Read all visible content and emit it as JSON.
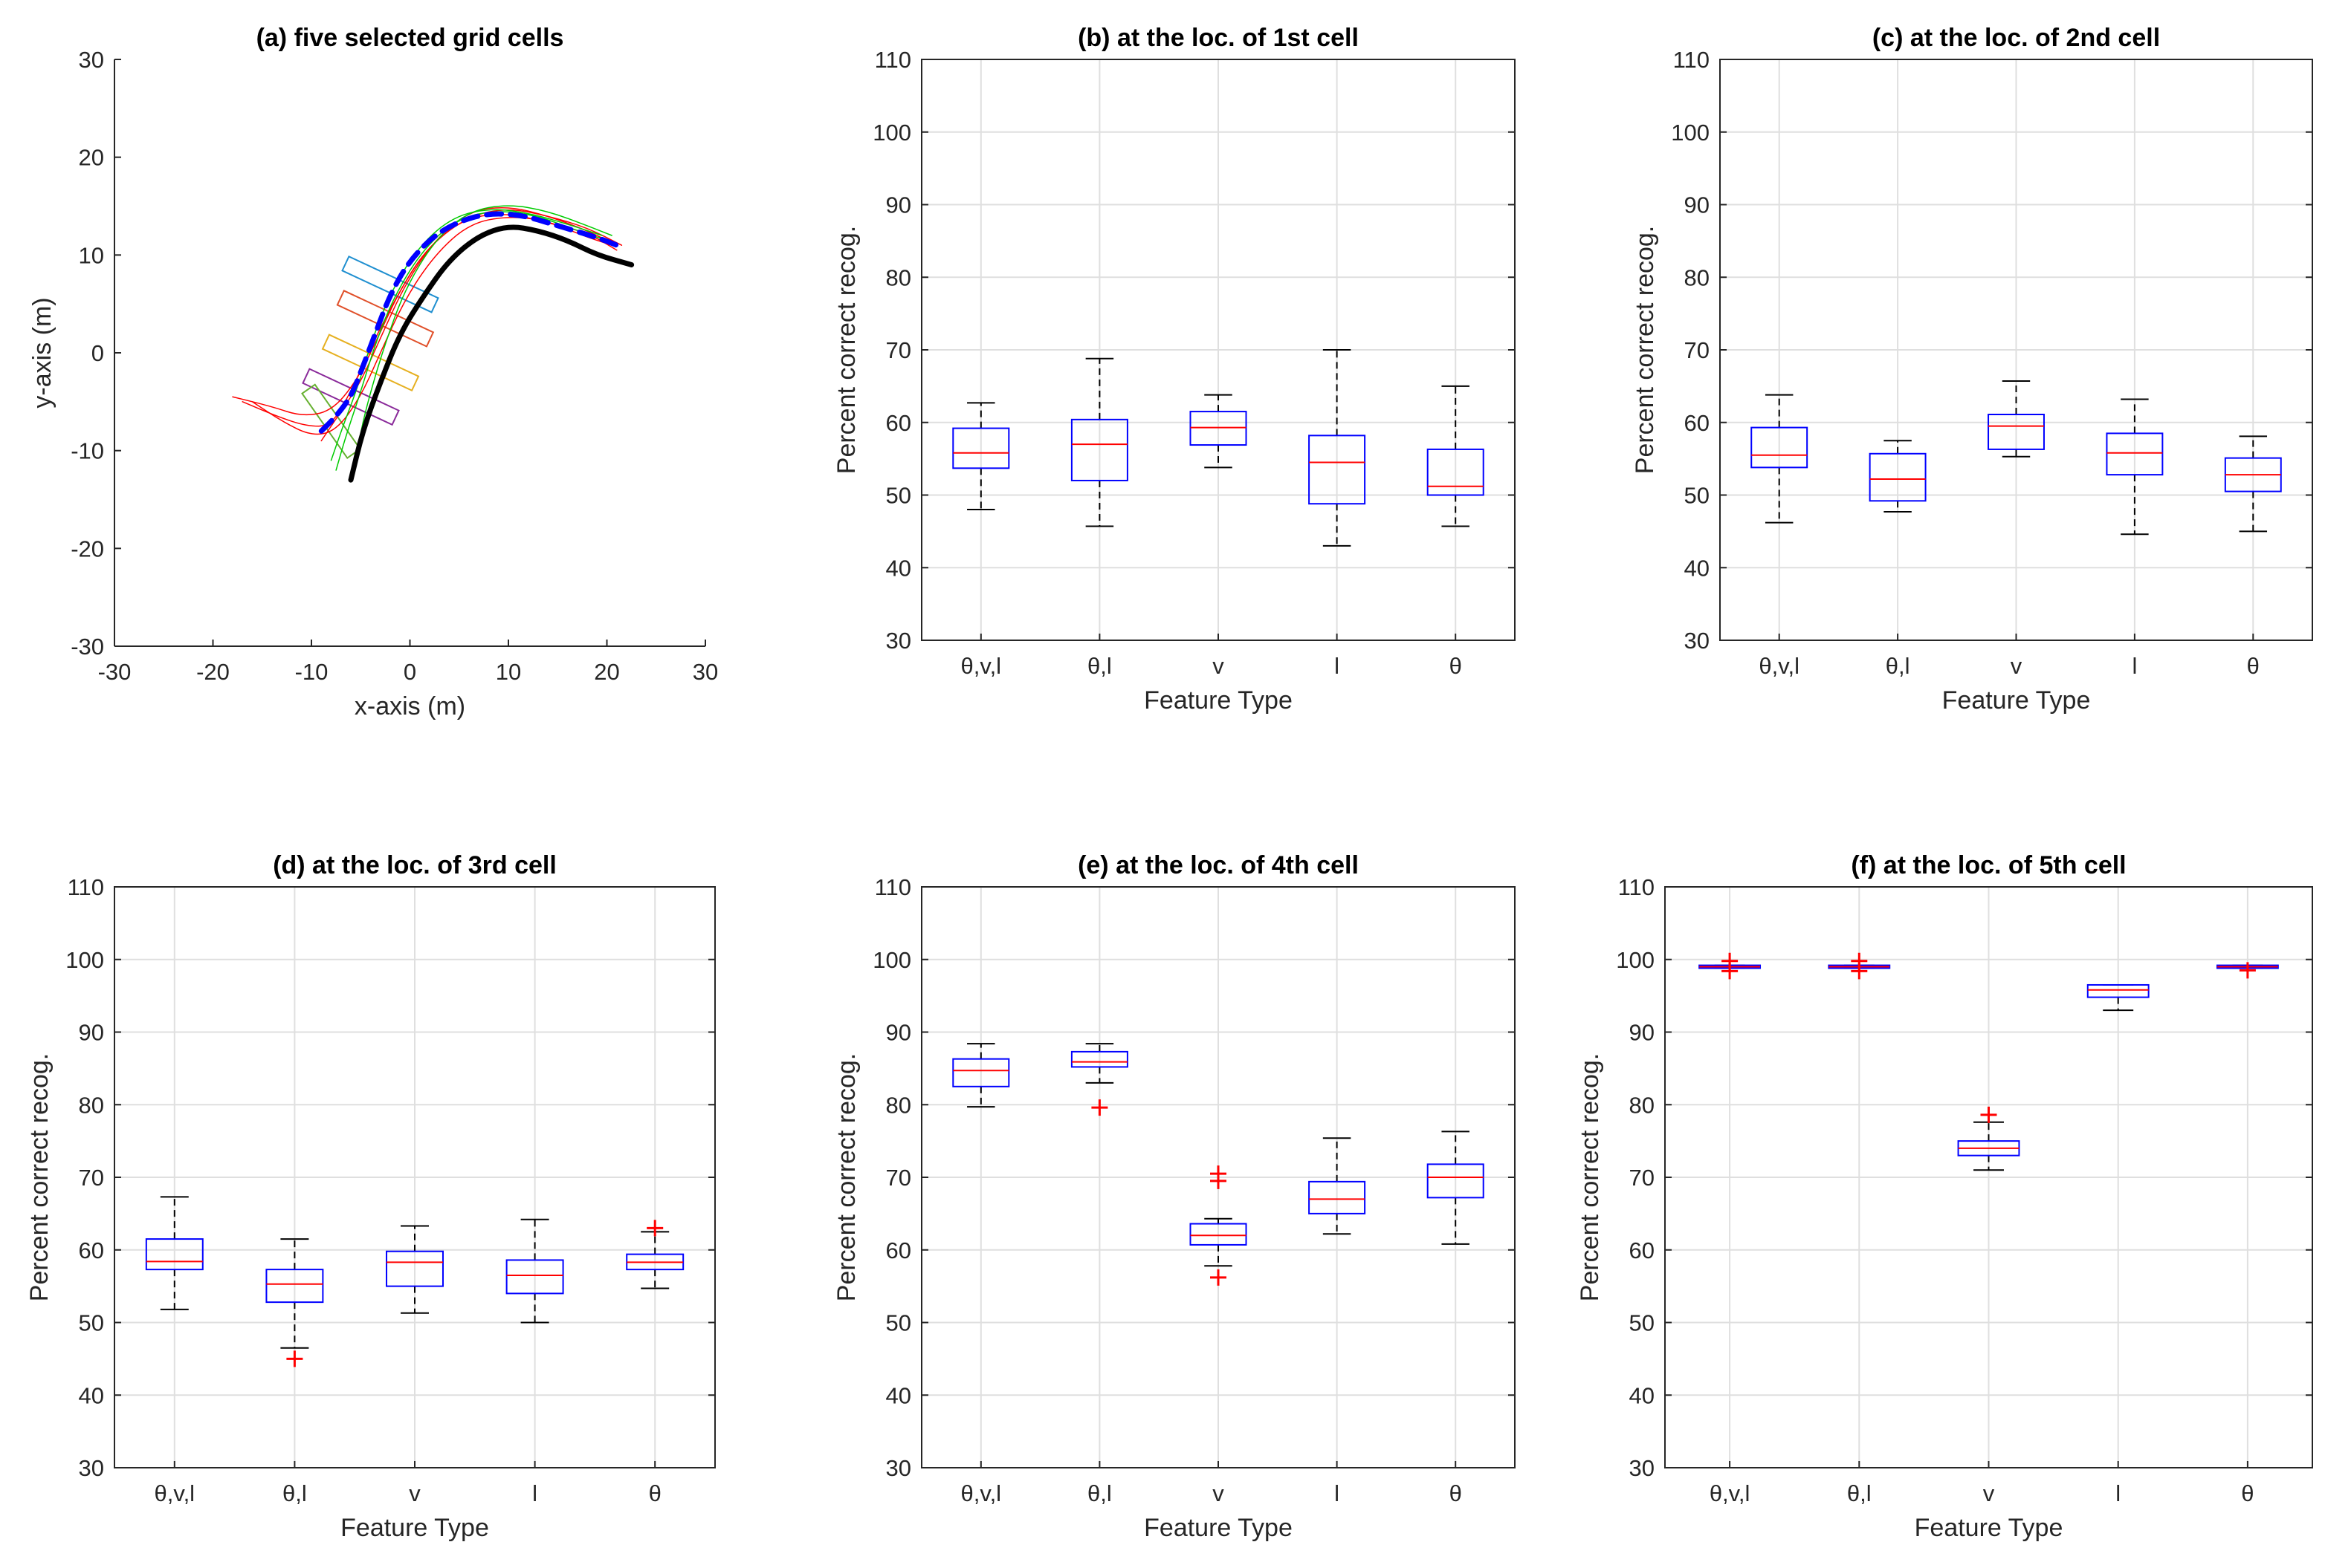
{
  "colors": {
    "box": "#0000ff",
    "median": "#ff0000",
    "outlier": "#ff0000",
    "whisker": "#000000",
    "grid": "#dfdfdf",
    "reference_path": "#000000",
    "mean_path": "#0000ff"
  },
  "chart_data": [
    {
      "id": "a",
      "type": "line",
      "title": "(a) five selected grid cells",
      "xlabel": "x-axis (m)",
      "ylabel": "y-axis (m)",
      "xlim": [
        -30,
        30
      ],
      "ylim": [
        -30,
        30
      ],
      "xticks": [
        "-30",
        "-20",
        "-10",
        "0",
        "10",
        "20",
        "30"
      ],
      "yticks": [
        "-30",
        "-20",
        "-10",
        "0",
        "10",
        "20",
        "30"
      ],
      "grid": false,
      "series": [
        {
          "name": "reference path",
          "color": "#000000",
          "style": "solid-thick",
          "x": [
            -6,
            -4.8,
            -3,
            -1,
            1.5,
            4,
            7,
            10,
            13,
            16,
            19,
            22.5
          ],
          "y": [
            -13,
            -8,
            -3,
            2,
            6,
            9.5,
            12,
            13,
            12.5,
            11.5,
            10,
            9
          ]
        },
        {
          "name": "mean path",
          "color": "#0000ff",
          "style": "dashed-thick",
          "x": [
            -9,
            -7.5,
            -6,
            -5,
            -3.5,
            -2,
            0,
            3,
            7,
            11,
            15,
            19,
            21
          ],
          "y": [
            -8,
            -6.5,
            -4.5,
            -2,
            2,
            6,
            9.5,
            12.5,
            14.2,
            14.2,
            13,
            11.8,
            11
          ]
        },
        {
          "name": "trajectory",
          "color": "#ff0000",
          "style": "thin",
          "x": [
            -18,
            -14,
            -11,
            -8,
            -5.5,
            -3.5,
            -1,
            2,
            6,
            10,
            14,
            18,
            21.5
          ],
          "y": [
            -4.5,
            -5.5,
            -6.5,
            -6,
            -3,
            1,
            6.5,
            11,
            14,
            14.8,
            14,
            12.8,
            11
          ]
        },
        {
          "name": "trajectory",
          "color": "#ff0000",
          "style": "thin",
          "x": [
            -17,
            -13.5,
            -10.5,
            -8,
            -6,
            -4,
            -1.5,
            1.5,
            5.5,
            10,
            14,
            18,
            21
          ],
          "y": [
            -5,
            -6.5,
            -7.5,
            -7.5,
            -4,
            0.5,
            5.5,
            10.5,
            13.8,
            14.3,
            13.3,
            12.3,
            10.5
          ]
        },
        {
          "name": "trajectory",
          "color": "#ff0000",
          "style": "thin",
          "x": [
            -16,
            -13,
            -10,
            -7.5,
            -5,
            -3,
            -0.5,
            2.5,
            6,
            10,
            14,
            17.5,
            20.5
          ],
          "y": [
            -5,
            -7,
            -8.5,
            -8,
            -4.5,
            0,
            5.5,
            10,
            13.2,
            14,
            13.5,
            12,
            11
          ]
        },
        {
          "name": "trajectory",
          "color": "#ff0000",
          "style": "thin",
          "x": [
            -9,
            -7,
            -5,
            -3,
            -0.5,
            2.5,
            6,
            10,
            14,
            18,
            21
          ],
          "y": [
            -9,
            -6,
            -3,
            1.5,
            7,
            11.5,
            14.5,
            15,
            14,
            12.5,
            11
          ]
        },
        {
          "name": "trajectory",
          "color": "#00cc00",
          "style": "thin",
          "x": [
            -7.5,
            -6.5,
            -5,
            -3.5,
            -1.5,
            1.5,
            5,
            9,
            13,
            17,
            20
          ],
          "y": [
            -12,
            -8.5,
            -4,
            1,
            6,
            10.8,
            13.8,
            14.6,
            14,
            12.5,
            11.5
          ]
        },
        {
          "name": "trajectory",
          "color": "#00cc00",
          "style": "thin",
          "x": [
            -5.5,
            -5,
            -4,
            -2.5,
            -0.5,
            2.5,
            6,
            10,
            14,
            18,
            20.5
          ],
          "y": [
            -11.5,
            -8,
            -4,
            1,
            6.5,
            11.5,
            14.5,
            15.2,
            14.5,
            13,
            12
          ]
        },
        {
          "name": "trajectory",
          "color": "#00cc00",
          "style": "thin",
          "x": [
            -8,
            -6.8,
            -5.3,
            -3.8,
            -1.8,
            1,
            4.5,
            8.5,
            12.5,
            16.5,
            19.5
          ],
          "y": [
            -11,
            -7.5,
            -3.5,
            1.5,
            6.5,
            11,
            14,
            14.8,
            14.2,
            13,
            12
          ]
        }
      ],
      "cells": [
        {
          "label": "cell 1",
          "color": "#1f8fd0",
          "cx": -2,
          "cy": 7,
          "width": 10,
          "height": 1.6,
          "angle": -25
        },
        {
          "label": "cell 2",
          "color": "#e0502a",
          "cx": -2.5,
          "cy": 3.5,
          "width": 10,
          "height": 1.6,
          "angle": -25
        },
        {
          "label": "cell 3",
          "color": "#e6b020",
          "cx": -4,
          "cy": -1,
          "width": 10,
          "height": 1.6,
          "angle": -25
        },
        {
          "label": "cell 4",
          "color": "#8a2a9a",
          "cx": -6,
          "cy": -4.5,
          "width": 10,
          "height": 1.6,
          "angle": -25
        },
        {
          "label": "cell 5",
          "color": "#66b030",
          "cx": -8,
          "cy": -7,
          "width": 8,
          "height": 1.6,
          "angle": -55
        }
      ]
    },
    {
      "id": "b",
      "type": "box",
      "title": "(b) at the loc. of 1st cell",
      "xlabel": "Feature Type",
      "ylabel": "Percent correct recog.",
      "ylim": [
        30,
        110
      ],
      "yticks": [
        "30",
        "40",
        "50",
        "60",
        "70",
        "80",
        "90",
        "100",
        "110"
      ],
      "categories": [
        "θ,v,l",
        "θ,l",
        "v",
        "l",
        "θ"
      ],
      "grid": true,
      "boxes": [
        {
          "min": 48,
          "q1": 53.7,
          "median": 55.8,
          "q3": 59.2,
          "max": 62.7,
          "outliers": []
        },
        {
          "min": 45.7,
          "q1": 52,
          "median": 57,
          "q3": 60.4,
          "max": 68.8,
          "outliers": []
        },
        {
          "min": 53.8,
          "q1": 56.9,
          "median": 59.3,
          "q3": 61.5,
          "max": 63.8,
          "outliers": []
        },
        {
          "min": 43,
          "q1": 48.8,
          "median": 54.5,
          "q3": 58.2,
          "max": 70,
          "outliers": []
        },
        {
          "min": 45.7,
          "q1": 50,
          "median": 51.2,
          "q3": 56.3,
          "max": 65,
          "outliers": []
        }
      ]
    },
    {
      "id": "c",
      "type": "box",
      "title": "(c) at the loc. of 2nd cell",
      "xlabel": "Feature Type",
      "ylabel": "Percent correct recog.",
      "ylim": [
        30,
        110
      ],
      "yticks": [
        "30",
        "40",
        "50",
        "60",
        "70",
        "80",
        "90",
        "100",
        "110"
      ],
      "categories": [
        "θ,v,l",
        "θ,l",
        "v",
        "l",
        "θ"
      ],
      "grid": true,
      "boxes": [
        {
          "min": 46.2,
          "q1": 53.8,
          "median": 55.5,
          "q3": 59.3,
          "max": 63.8,
          "outliers": []
        },
        {
          "min": 47.7,
          "q1": 49.2,
          "median": 52.2,
          "q3": 55.7,
          "max": 57.5,
          "outliers": []
        },
        {
          "min": 55.3,
          "q1": 56.3,
          "median": 59.5,
          "q3": 61.1,
          "max": 65.7,
          "outliers": []
        },
        {
          "min": 44.6,
          "q1": 52.8,
          "median": 55.8,
          "q3": 58.5,
          "max": 63.2,
          "outliers": []
        },
        {
          "min": 45,
          "q1": 50.5,
          "median": 52.8,
          "q3": 55.1,
          "max": 58.1,
          "outliers": []
        }
      ]
    },
    {
      "id": "d",
      "type": "box",
      "title": "(d) at the loc. of 3rd cell",
      "xlabel": "Feature Type",
      "ylabel": "Percent correct recog.",
      "ylim": [
        30,
        110
      ],
      "yticks": [
        "30",
        "40",
        "50",
        "60",
        "70",
        "80",
        "90",
        "100",
        "110"
      ],
      "categories": [
        "θ,v,l",
        "θ,l",
        "v",
        "l",
        "θ"
      ],
      "grid": true,
      "boxes": [
        {
          "min": 51.8,
          "q1": 57.3,
          "median": 58.4,
          "q3": 61.5,
          "max": 67.3,
          "outliers": []
        },
        {
          "min": 46.5,
          "q1": 52.8,
          "median": 55.3,
          "q3": 57.3,
          "max": 61.5,
          "outliers": [
            45
          ]
        },
        {
          "min": 51.3,
          "q1": 55,
          "median": 58.3,
          "q3": 59.8,
          "max": 63.3,
          "outliers": []
        },
        {
          "min": 50,
          "q1": 54,
          "median": 56.5,
          "q3": 58.6,
          "max": 64.2,
          "outliers": []
        },
        {
          "min": 54.7,
          "q1": 57.3,
          "median": 58.3,
          "q3": 59.4,
          "max": 62.5,
          "outliers": [
            63
          ]
        }
      ]
    },
    {
      "id": "e",
      "type": "box",
      "title": "(e) at the loc. of 4th cell",
      "xlabel": "Feature Type",
      "ylabel": "Percent correct recog.",
      "ylim": [
        30,
        110
      ],
      "yticks": [
        "30",
        "40",
        "50",
        "60",
        "70",
        "80",
        "90",
        "100",
        "110"
      ],
      "categories": [
        "θ,v,l",
        "θ,l",
        "v",
        "l",
        "θ"
      ],
      "grid": true,
      "boxes": [
        {
          "min": 79.7,
          "q1": 82.5,
          "median": 84.7,
          "q3": 86.3,
          "max": 88.4,
          "outliers": []
        },
        {
          "min": 83,
          "q1": 85.2,
          "median": 85.9,
          "q3": 87.3,
          "max": 88.4,
          "outliers": [
            79.6
          ]
        },
        {
          "min": 57.8,
          "q1": 60.7,
          "median": 62,
          "q3": 63.6,
          "max": 64.3,
          "outliers": [
            56.2,
            69.5,
            70.5
          ]
        },
        {
          "min": 62.2,
          "q1": 65,
          "median": 67,
          "q3": 69.4,
          "max": 75.4,
          "outliers": []
        },
        {
          "min": 60.8,
          "q1": 67.2,
          "median": 70,
          "q3": 71.8,
          "max": 76.3,
          "outliers": []
        }
      ]
    },
    {
      "id": "f",
      "type": "box",
      "title": "(f) at the loc. of 5th cell",
      "xlabel": "Feature Type",
      "ylabel": "Percent correct recog.",
      "ylim": [
        30,
        110
      ],
      "yticks": [
        "30",
        "40",
        "50",
        "60",
        "70",
        "80",
        "90",
        "100",
        "110"
      ],
      "categories": [
        "θ,v,l",
        "θ,l",
        "v",
        "l",
        "θ"
      ],
      "grid": true,
      "boxes": [
        {
          "min": 98.8,
          "q1": 98.8,
          "median": 99,
          "q3": 99.2,
          "max": 99.2,
          "outliers": [
            98.4,
            99.8
          ]
        },
        {
          "min": 98.8,
          "q1": 98.8,
          "median": 99,
          "q3": 99.2,
          "max": 99.2,
          "outliers": [
            98.4,
            99.8
          ]
        },
        {
          "min": 71,
          "q1": 73,
          "median": 74,
          "q3": 75,
          "max": 77.6,
          "outliers": [
            78.6
          ]
        },
        {
          "min": 93,
          "q1": 94.8,
          "median": 95.8,
          "q3": 96.5,
          "max": 96.5,
          "outliers": []
        },
        {
          "min": 98.8,
          "q1": 98.8,
          "median": 99,
          "q3": 99.2,
          "max": 99.2,
          "outliers": [
            98.5
          ]
        }
      ]
    }
  ]
}
